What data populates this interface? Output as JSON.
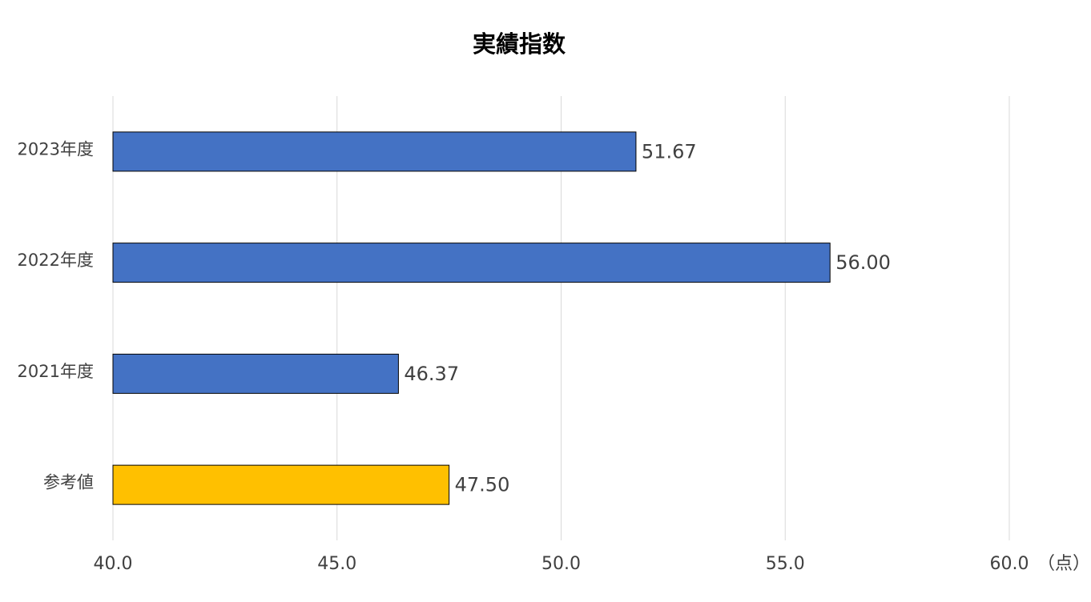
{
  "chart_data": {
    "type": "bar",
    "orientation": "horizontal",
    "title": "実績指数",
    "categories": [
      "2023年度",
      "2022年度",
      "2021年度",
      "参考値"
    ],
    "values": [
      51.67,
      56,
      46.37,
      47.5
    ],
    "value_labels": [
      "51.67",
      "56.00",
      "46.37",
      "47.50"
    ],
    "colors": [
      "#4472c4",
      "#4472c4",
      "#4472c4",
      "#ffc000"
    ],
    "xlim": [
      40,
      60
    ],
    "xticks": [
      {
        "value": 40,
        "label": "40.0"
      },
      {
        "value": 45,
        "label": "45.0"
      },
      {
        "value": 50,
        "label": "50.0"
      },
      {
        "value": 55,
        "label": "55.0"
      },
      {
        "value": 60,
        "label": "60.0"
      }
    ],
    "x_label": "（点）",
    "grid": true
  }
}
